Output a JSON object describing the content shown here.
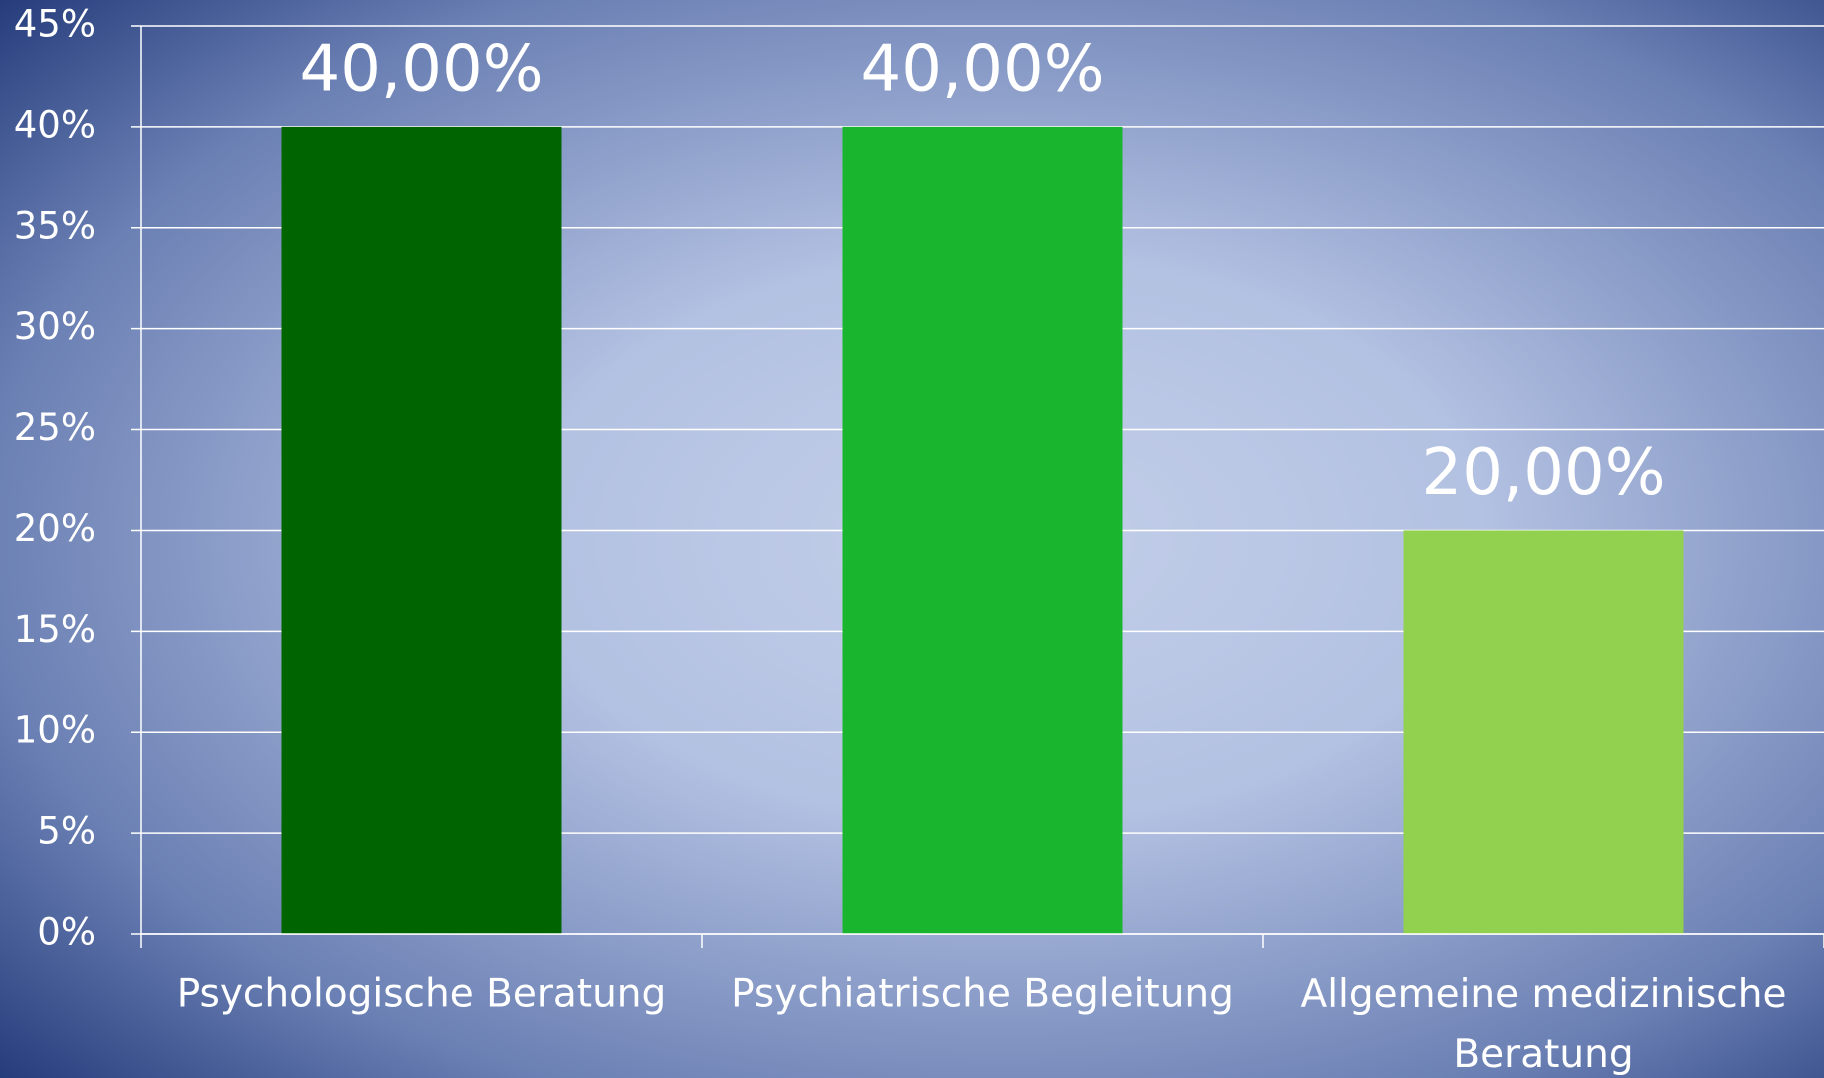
{
  "chart_data": {
    "type": "bar",
    "categories": [
      "Psychologische Beratung",
      "Psychiatrische Begleitung",
      "Allgemeine medizinische Beratung"
    ],
    "values": [
      40,
      40,
      20
    ],
    "value_labels": [
      "40,00%",
      "40,00%",
      "20,00%"
    ],
    "colors": [
      "#006400",
      "#1ab52e",
      "#92d050"
    ],
    "ylim": [
      0,
      45
    ],
    "yticks": [
      {
        "value": 0,
        "label": "0%"
      },
      {
        "value": 5,
        "label": "5%"
      },
      {
        "value": 10,
        "label": "10%"
      },
      {
        "value": 15,
        "label": "15%"
      },
      {
        "value": 20,
        "label": "20%"
      },
      {
        "value": 25,
        "label": "25%"
      },
      {
        "value": 30,
        "label": "30%"
      },
      {
        "value": 35,
        "label": "35%"
      },
      {
        "value": 40,
        "label": "40%"
      },
      {
        "value": 45,
        "label": "45%"
      }
    ],
    "grid": true
  }
}
